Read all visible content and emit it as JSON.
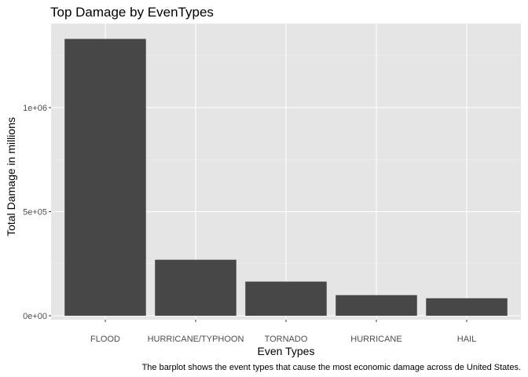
{
  "chart_data": {
    "type": "bar",
    "title": "Top Damage by EvenTypes",
    "xlabel": "Even Types",
    "ylabel": "Total Damage in millions",
    "caption": "The barplot shows the event types that cause the most economic damage across de United States.",
    "categories": [
      "FLOOD",
      "HURRICANE/TYPHOON",
      "TORNADO",
      "HURRICANE",
      "HAIL"
    ],
    "values": [
      1330000,
      269000,
      164000,
      99000,
      84000
    ],
    "y_ticks": [
      0,
      500000,
      1000000
    ],
    "y_tick_labels": [
      "0e+00",
      "5e+05",
      "1e+06"
    ],
    "ylim": [
      0,
      1400000
    ],
    "grid": true,
    "colors": {
      "panel": "#e5e5e5",
      "grid_major": "#ffffff",
      "grid_minor": "#f2f2f2",
      "bar": "#474747",
      "tick": "#333333"
    }
  }
}
